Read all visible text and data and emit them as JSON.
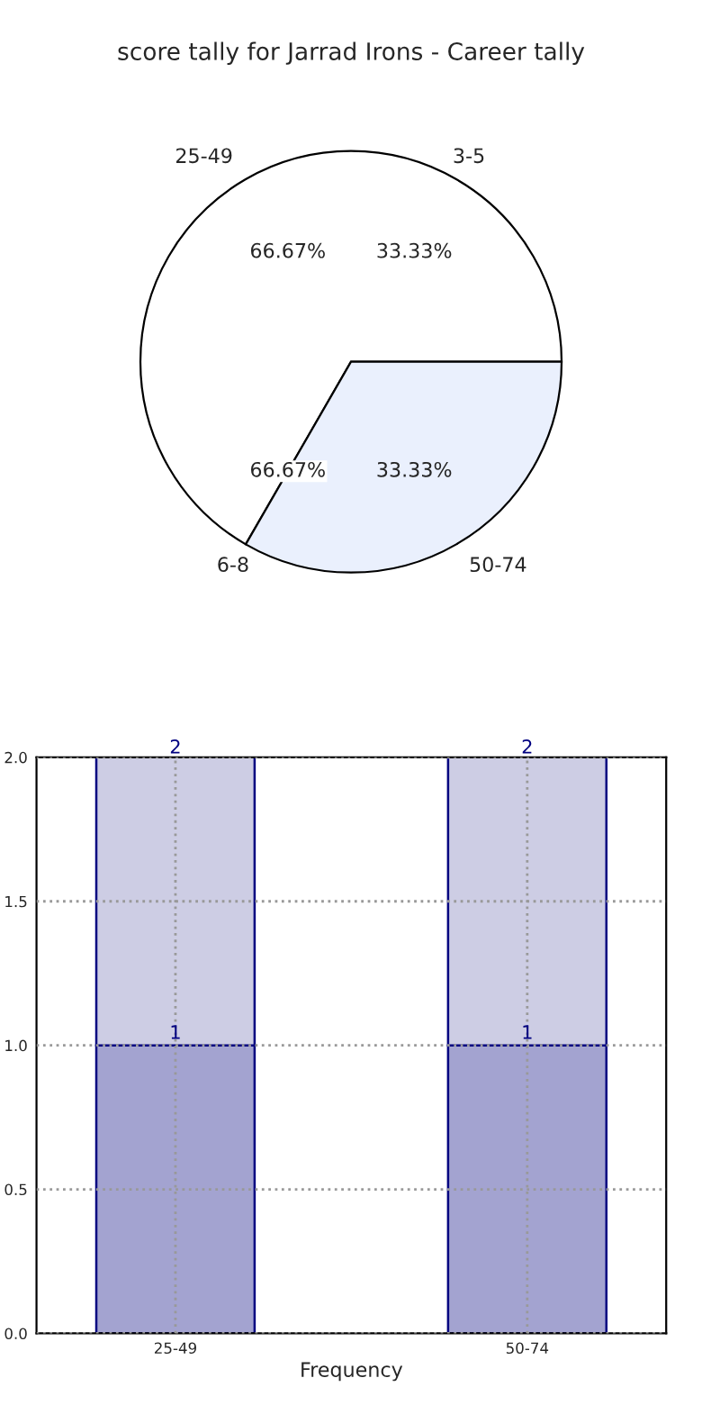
{
  "chart_data": [
    {
      "type": "pie",
      "title": "score tally for Jarrad Irons - Career tally",
      "categories": [
        "25-49",
        "50-74"
      ],
      "values": [
        66.67,
        33.33
      ],
      "colors": [
        "#ffffff",
        "#eaf0fd"
      ],
      "value_labels": [
        "66.67%",
        "33.33%"
      ],
      "annotations": [
        "3-5",
        "6-8",
        "66.67%",
        "33.33%"
      ]
    },
    {
      "type": "bar",
      "stacked": true,
      "xlabel": "Frequency",
      "categories": [
        "25-49",
        "50-74"
      ],
      "series": [
        {
          "color": "#a3a3d0",
          "values": [
            1,
            1
          ],
          "value_labels": [
            "1",
            "1"
          ]
        },
        {
          "color": "#cdcde4",
          "values": [
            1,
            1
          ]
        }
      ],
      "totals": [
        "2",
        "2"
      ],
      "ylim": [
        0,
        2
      ],
      "yticks": [
        {
          "value": 0,
          "label": "0.0"
        },
        {
          "value": 0.5,
          "label": "0.5"
        },
        {
          "value": 1,
          "label": "1.0"
        },
        {
          "value": 1.5,
          "label": "1.5"
        },
        {
          "value": 2,
          "label": "2.0"
        }
      ],
      "grid": true,
      "legend": false
    }
  ]
}
